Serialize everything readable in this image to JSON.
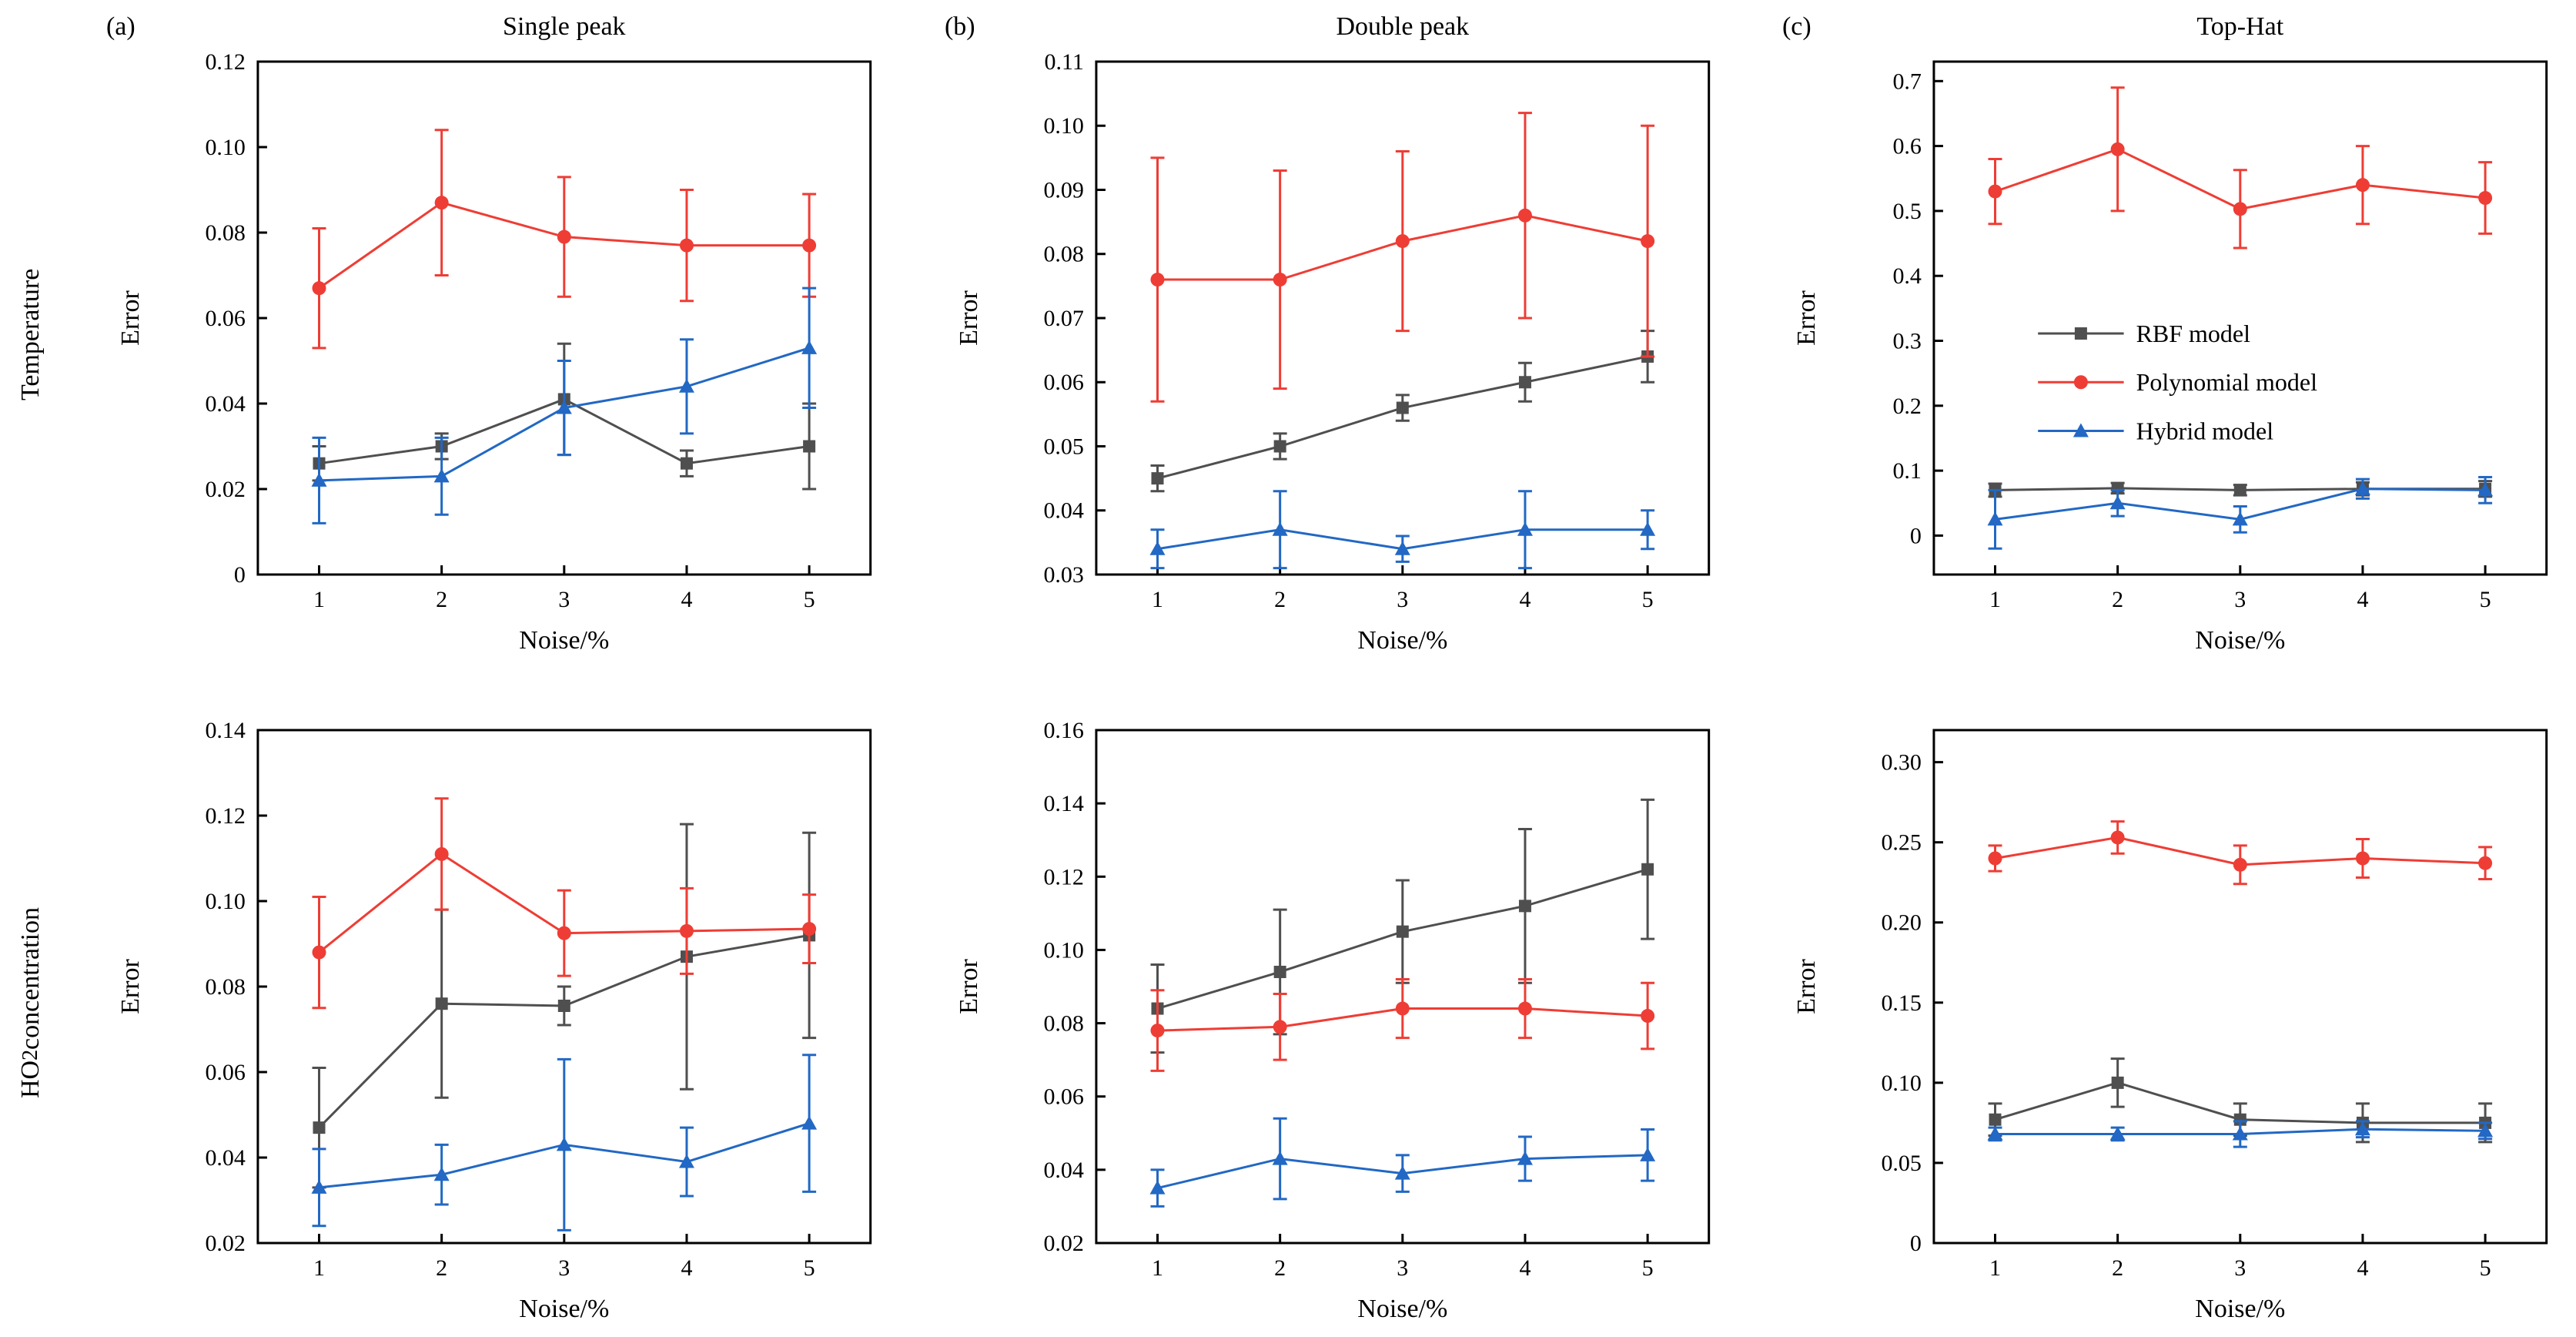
{
  "figure": {
    "rows": [
      {
        "label": "Temperature",
        "label_html": "Temperature"
      },
      {
        "label": "HO2 concentration",
        "label_html": "HO<sub>2</sub> concentration"
      }
    ]
  },
  "legend": {
    "position": "inside panel (c) top chart, middle-left",
    "entries": [
      {
        "label": "RBF model",
        "marker": "square",
        "color": "#4f4f4f"
      },
      {
        "label": "Polynomial model",
        "marker": "circle",
        "color": "#ee3d35"
      },
      {
        "label": "Hybrid model",
        "marker": "triangle",
        "color": "#2268c4"
      }
    ]
  },
  "chart_data": [
    {
      "id": "temperature-single-peak",
      "type": "line",
      "panel_label": "(a)",
      "title": "Single peak",
      "row": "Temperature",
      "xlabel": "Noise/%",
      "ylabel": "Error",
      "x": [
        1,
        2,
        3,
        4,
        5
      ],
      "xlim": [
        0.5,
        5.5
      ],
      "ylim": [
        0,
        0.12
      ],
      "yticks": [
        0,
        0.02,
        0.04,
        0.06,
        0.08,
        0.1,
        0.12
      ],
      "ytick_decimals": 2,
      "legend": false,
      "series": [
        {
          "name": "RBF model",
          "marker": "square",
          "color": "#4f4f4f",
          "values": [
            0.026,
            0.03,
            0.041,
            0.026,
            0.03
          ],
          "errors": [
            0.004,
            0.003,
            0.013,
            0.003,
            0.01
          ]
        },
        {
          "name": "Polynomial model",
          "marker": "circle",
          "color": "#ee3d35",
          "values": [
            0.067,
            0.087,
            0.079,
            0.077,
            0.077
          ],
          "errors": [
            0.014,
            0.017,
            0.014,
            0.013,
            0.012
          ]
        },
        {
          "name": "Hybrid model",
          "marker": "triangle",
          "color": "#2268c4",
          "values": [
            0.022,
            0.023,
            0.039,
            0.044,
            0.053
          ],
          "errors": [
            0.01,
            0.009,
            0.011,
            0.011,
            0.014
          ]
        }
      ]
    },
    {
      "id": "temperature-double-peak",
      "type": "line",
      "panel_label": "(b)",
      "title": "Double peak",
      "row": "Temperature",
      "xlabel": "Noise/%",
      "ylabel": "Error",
      "x": [
        1,
        2,
        3,
        4,
        5
      ],
      "xlim": [
        0.5,
        5.5
      ],
      "ylim": [
        0.03,
        0.11
      ],
      "yticks": [
        0.03,
        0.04,
        0.05,
        0.06,
        0.07,
        0.08,
        0.09,
        0.1,
        0.11
      ],
      "ytick_decimals": 2,
      "legend": false,
      "series": [
        {
          "name": "RBF model",
          "marker": "square",
          "color": "#4f4f4f",
          "values": [
            0.045,
            0.05,
            0.056,
            0.06,
            0.064
          ],
          "errors": [
            0.002,
            0.002,
            0.002,
            0.003,
            0.004
          ]
        },
        {
          "name": "Polynomial model",
          "marker": "circle",
          "color": "#ee3d35",
          "values": [
            0.076,
            0.076,
            0.082,
            0.086,
            0.082
          ],
          "errors": [
            0.019,
            0.017,
            0.014,
            0.016,
            0.018
          ]
        },
        {
          "name": "Hybrid model",
          "marker": "triangle",
          "color": "#2268c4",
          "values": [
            0.034,
            0.037,
            0.034,
            0.037,
            0.037
          ],
          "errors": [
            0.003,
            0.006,
            0.002,
            0.006,
            0.003
          ]
        }
      ]
    },
    {
      "id": "temperature-top-hat",
      "type": "line",
      "panel_label": "(c)",
      "title": "Top-Hat",
      "row": "Temperature",
      "xlabel": "Noise/%",
      "ylabel": "Error",
      "x": [
        1,
        2,
        3,
        4,
        5
      ],
      "xlim": [
        0.5,
        5.5
      ],
      "ylim": [
        -0.06,
        0.73
      ],
      "yticks": [
        0,
        0.1,
        0.2,
        0.3,
        0.4,
        0.5,
        0.6,
        0.7
      ],
      "ytick_decimals": 1,
      "legend": true,
      "series": [
        {
          "name": "RBF model",
          "marker": "square",
          "color": "#4f4f4f",
          "values": [
            0.07,
            0.073,
            0.07,
            0.072,
            0.072
          ],
          "errors": [
            0.01,
            0.008,
            0.008,
            0.01,
            0.012
          ]
        },
        {
          "name": "Polynomial model",
          "marker": "circle",
          "color": "#ee3d35",
          "values": [
            0.53,
            0.595,
            0.503,
            0.54,
            0.52
          ],
          "errors": [
            0.05,
            0.095,
            0.06,
            0.06,
            0.055
          ]
        },
        {
          "name": "Hybrid model",
          "marker": "triangle",
          "color": "#2268c4",
          "values": [
            0.025,
            0.05,
            0.025,
            0.072,
            0.07
          ],
          "errors": [
            0.045,
            0.02,
            0.02,
            0.015,
            0.02
          ]
        }
      ]
    },
    {
      "id": "ho2-single-peak",
      "type": "line",
      "panel_label": "",
      "title": "",
      "row": "HO2 concentration",
      "xlabel": "Noise/%",
      "ylabel": "Error",
      "x": [
        1,
        2,
        3,
        4,
        5
      ],
      "xlim": [
        0.5,
        5.5
      ],
      "ylim": [
        0.02,
        0.14
      ],
      "yticks": [
        0.02,
        0.04,
        0.06,
        0.08,
        0.1,
        0.12,
        0.14
      ],
      "ytick_decimals": 2,
      "legend": false,
      "series": [
        {
          "name": "RBF model",
          "marker": "square",
          "color": "#4f4f4f",
          "values": [
            0.047,
            0.076,
            0.0755,
            0.087,
            0.092
          ],
          "errors": [
            0.014,
            0.022,
            0.0045,
            0.031,
            0.024
          ]
        },
        {
          "name": "Polynomial model",
          "marker": "circle",
          "color": "#ee3d35",
          "values": [
            0.088,
            0.111,
            0.0925,
            0.093,
            0.0935
          ],
          "errors": [
            0.013,
            0.013,
            0.01,
            0.01,
            0.008
          ]
        },
        {
          "name": "Hybrid model",
          "marker": "triangle",
          "color": "#2268c4",
          "values": [
            0.033,
            0.036,
            0.043,
            0.039,
            0.048
          ],
          "errors": [
            0.009,
            0.007,
            0.02,
            0.008,
            0.016
          ]
        }
      ]
    },
    {
      "id": "ho2-double-peak",
      "type": "line",
      "panel_label": "",
      "title": "",
      "row": "HO2 concentration",
      "xlabel": "Noise/%",
      "ylabel": "Error",
      "x": [
        1,
        2,
        3,
        4,
        5
      ],
      "xlim": [
        0.5,
        5.5
      ],
      "ylim": [
        0.02,
        0.16
      ],
      "yticks": [
        0.02,
        0.04,
        0.06,
        0.08,
        0.1,
        0.12,
        0.14,
        0.16
      ],
      "ytick_decimals": 2,
      "legend": false,
      "series": [
        {
          "name": "RBF model",
          "marker": "square",
          "color": "#4f4f4f",
          "values": [
            0.084,
            0.094,
            0.105,
            0.112,
            0.122
          ],
          "errors": [
            0.012,
            0.017,
            0.014,
            0.021,
            0.019
          ]
        },
        {
          "name": "Polynomial model",
          "marker": "circle",
          "color": "#ee3d35",
          "values": [
            0.078,
            0.079,
            0.084,
            0.084,
            0.082
          ],
          "errors": [
            0.011,
            0.009,
            0.008,
            0.008,
            0.009
          ]
        },
        {
          "name": "Hybrid model",
          "marker": "triangle",
          "color": "#2268c4",
          "values": [
            0.035,
            0.043,
            0.039,
            0.043,
            0.044
          ],
          "errors": [
            0.005,
            0.011,
            0.005,
            0.006,
            0.007
          ]
        }
      ]
    },
    {
      "id": "ho2-top-hat",
      "type": "line",
      "panel_label": "",
      "title": "",
      "row": "HO2 concentration",
      "xlabel": "Noise/%",
      "ylabel": "Error",
      "x": [
        1,
        2,
        3,
        4,
        5
      ],
      "xlim": [
        0.5,
        5.5
      ],
      "ylim": [
        0,
        0.32
      ],
      "yticks": [
        0,
        0.05,
        0.1,
        0.15,
        0.2,
        0.25,
        0.3
      ],
      "ytick_decimals": 2,
      "legend": false,
      "series": [
        {
          "name": "RBF model",
          "marker": "square",
          "color": "#4f4f4f",
          "values": [
            0.077,
            0.1,
            0.077,
            0.075,
            0.075
          ],
          "errors": [
            0.01,
            0.015,
            0.01,
            0.012,
            0.012
          ]
        },
        {
          "name": "Polynomial model",
          "marker": "circle",
          "color": "#ee3d35",
          "values": [
            0.24,
            0.253,
            0.236,
            0.24,
            0.237
          ],
          "errors": [
            0.008,
            0.01,
            0.012,
            0.012,
            0.01
          ]
        },
        {
          "name": "Hybrid model",
          "marker": "triangle",
          "color": "#2268c4",
          "values": [
            0.068,
            0.068,
            0.068,
            0.071,
            0.07
          ],
          "errors": [
            0.004,
            0.004,
            0.008,
            0.005,
            0.005
          ]
        }
      ]
    }
  ]
}
